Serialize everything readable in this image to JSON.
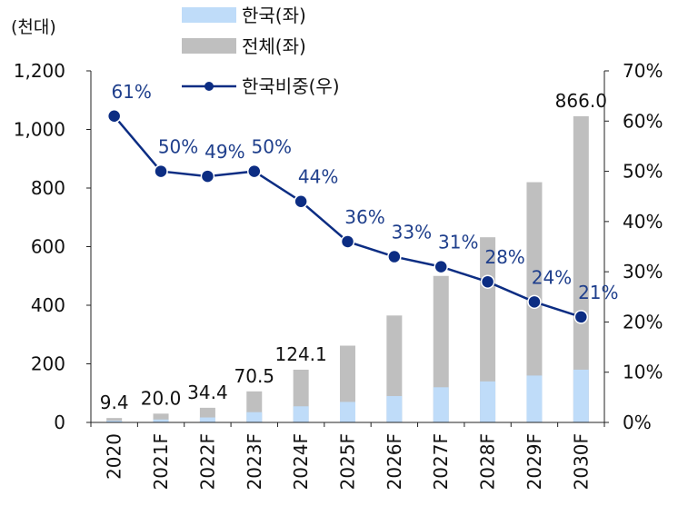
{
  "chart_data": {
    "type": "bar",
    "left_axis_unit": "(천대)",
    "categories": [
      "2020",
      "2021F",
      "2022F",
      "2023F",
      "2024F",
      "2025F",
      "2026F",
      "2027F",
      "2028F",
      "2029F",
      "2030F"
    ],
    "series": [
      {
        "name": "한국(좌)",
        "type": "bar",
        "axis": "left",
        "color": "#bfdcf9",
        "values": [
          6,
          10,
          17,
          35,
          55,
          70,
          90,
          120,
          140,
          160,
          180
        ]
      },
      {
        "name": "전체(좌)",
        "type": "bar",
        "axis": "left",
        "color": "#bfbfbf",
        "values": [
          15,
          30,
          50,
          106,
          180,
          262,
          365,
          500,
          632,
          820,
          1045
        ]
      },
      {
        "name": "한국비중(우)",
        "type": "line",
        "axis": "right",
        "color": "#0c2d83",
        "values": [
          61,
          50,
          49,
          50,
          44,
          36,
          33,
          31,
          28,
          24,
          21
        ]
      }
    ],
    "bar_labels": [
      {
        "category": "2020",
        "text": "9.4"
      },
      {
        "category": "2021F",
        "text": "20.0"
      },
      {
        "category": "2022F",
        "text": "34.4"
      },
      {
        "category": "2023F",
        "text": "70.5"
      },
      {
        "category": "2024F",
        "text": "124.1"
      },
      {
        "category": "2030F",
        "text": "866.0"
      }
    ],
    "line_labels": [
      "61%",
      "50%",
      "49%",
      "50%",
      "44%",
      "36%",
      "33%",
      "31%",
      "28%",
      "24%",
      "21%"
    ],
    "y_left": {
      "min": 0,
      "max": 1200,
      "ticks": [
        "0",
        "200",
        "400",
        "600",
        "800",
        "1,000",
        "1,200"
      ]
    },
    "y_right": {
      "min": 0,
      "max": 70,
      "ticks": [
        "0%",
        "10%",
        "20%",
        "30%",
        "40%",
        "50%",
        "60%",
        "70%"
      ]
    },
    "legend_position": "top-center",
    "grid": false
  }
}
